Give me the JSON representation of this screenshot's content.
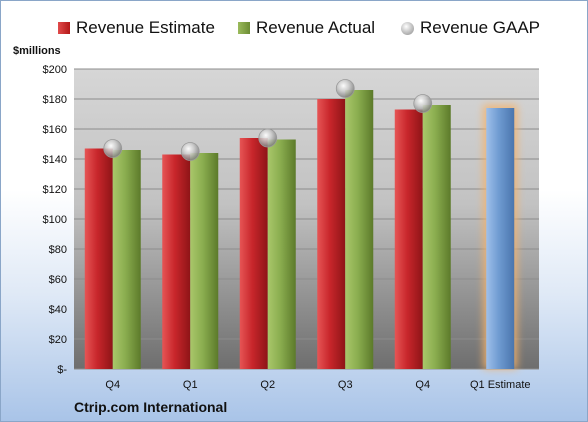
{
  "legend": {
    "estimate": "Revenue Estimate",
    "actual": "Revenue Actual",
    "gaap": "Revenue GAAP"
  },
  "unit_label": "$millions",
  "company": "Ctrip.com International",
  "colors": {
    "estimate": "#c0282d",
    "actual": "#8aad4f",
    "gaap": "#b0b0b0",
    "forecast": "#6f9bd1",
    "forecast_glow": "#f5b26b"
  },
  "chart_data": {
    "type": "bar",
    "categories": [
      "Q4",
      "Q1",
      "Q2",
      "Q3",
      "Q4",
      "Q1 Estimate"
    ],
    "series": [
      {
        "name": "Revenue Estimate",
        "values": [
          147,
          143,
          154,
          180,
          173,
          null
        ]
      },
      {
        "name": "Revenue Actual",
        "values": [
          146,
          144,
          153,
          186,
          176,
          null
        ]
      },
      {
        "name": "Revenue GAAP",
        "values": [
          147,
          145,
          154,
          187,
          177,
          null
        ]
      },
      {
        "name": "Q1 Estimate",
        "values": [
          null,
          null,
          null,
          null,
          null,
          174
        ]
      }
    ],
    "y_ticks": [
      "$-",
      "$20",
      "$40",
      "$60",
      "$80",
      "$100",
      "$120",
      "$140",
      "$160",
      "$180",
      "$200"
    ],
    "ylim": [
      0,
      200
    ],
    "grid": true,
    "legend_position": "top"
  }
}
